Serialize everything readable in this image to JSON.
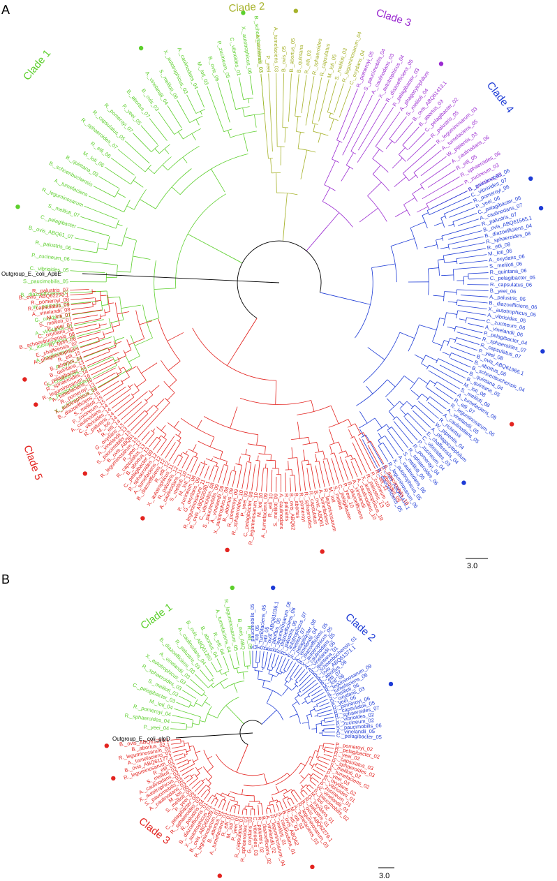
{
  "colors": {
    "green": "#5ccf2c",
    "olive": "#a6b22a",
    "purple": "#9b2bd1",
    "blue": "#1d3bd6",
    "red": "#e3231f",
    "black": "#000000"
  },
  "panels": [
    {
      "letter": "A",
      "outgroup_label": "Outgroup_E._coli_ApbE",
      "scale_label": "3.0",
      "clades": [
        {
          "label": "Clade 1",
          "color": "green",
          "start": 150,
          "end": 265,
          "leaves": [
            "X._autotrophicus_07",
            "A._phagocytophilum",
            "E._chaffeensis_03",
            "R._typhi_01",
            "A._caulinodans_07",
            "X._autotrophicus_06",
            "A._vinelandii_01",
            "G._oxydans_01",
            "W._pipientis_03",
            "B._diazoefficiens_07",
            "S._paucimobilis_05",
            "C._vibrioides_05",
            "P._zucineum_06",
            "R._palustris_06",
            "B._ovis_ABQ61_07",
            "C._pelagibacter",
            "S._meliloti_07",
            "R._leguminosarum",
            "A._tumefaciens",
            "B._schoenbuchensis",
            "B._quintana_03",
            "M._loti_06",
            "R._etli_06",
            "R._sphaeroides_07",
            "R._capsulatus_05",
            "R._pomeroyi_07",
            "P._yeei_05",
            "B._abortus_07",
            "B._ovis_03",
            "A._vinelandii_04",
            "S._meliloti_06",
            "X._autotrophicus_03",
            "A._caulinodans_04",
            "M._loti_03",
            "B._ovis_06",
            "P._zucineum_05",
            "C._vibrioides_01",
            "X._autotrophicus_06",
            "B._schoenbuchensis_03"
          ]
        },
        {
          "label": "Clade 2",
          "color": "olive",
          "start": 265,
          "end": 290,
          "leaves": [
            "A._vinelandii_03",
            "P._yeei",
            "A._tumefaciens_03",
            "B._ovis_05",
            "B._abortus_05",
            "B._quintana",
            "R._etli_03",
            "R._sphaeroides",
            "R._capsulatus",
            "M._loti_05",
            "S._meliloti_03",
            "R._leguminosarum_04",
            "C._oxydans_04"
          ]
        },
        {
          "label": "Clade 3",
          "color": "purple",
          "start": 292,
          "end": 334,
          "leaves": [
            "R._pomeroyi_05",
            "S._paucimobilis_04",
            "A._caulinodans_03",
            "X._autotrophicus_04",
            "R._diazoefficiens_05",
            "P._pelagibacter_03",
            "A._phagocytophilum",
            "S._meliloti_04",
            "B._ovis_ABQ61413.1",
            "B._abortus_03",
            "C._pelagibacter_02",
            "R._palustris_05",
            "R._leguminosarum_03",
            "A._tumefaciens_05",
            "W._pipientis_03",
            "A._caulinodans_06",
            "R._etli_05",
            "R._sphaeroides_06",
            "P._zucineum_03",
            "B._quintana_02"
          ]
        },
        {
          "label": "Clade 4",
          "color": "blue",
          "start": 334,
          "end": 422,
          "leaves": [
            "S._paucimobilis_06",
            "C._vibrioides_07",
            "R._pomeroyi_06",
            "P._yeei_06",
            "C._pelagibacter_06",
            "A._caulinodans_07",
            "R._palustris_07",
            "B._ovis_ABQ61565.1",
            "B._diazoefficiens_04",
            "R._sphaeroides_08",
            "R._etli_08",
            "M._loti_06",
            "A._oxydans_06",
            "S._meliloti_06",
            "R._quintana_06",
            "C._pelagibacter_05",
            "R._capsulatus_06",
            "B._yeei_06",
            "A._palustris_06",
            "B._diazoefficiens_06",
            "X._autotrophicus_05",
            "A._vibrioides_05",
            "C._zucineum_06",
            "A._vinelandii_06",
            "P._pelagibacter_04",
            "R._sphaeroides_07",
            "R._capsulatus_07",
            "P._yeei_08",
            "B._ovis_ABQ61966.1",
            "B._abortus_06",
            "B._schoenbuchensis_04",
            "B._quintana_04",
            "B._quintana_05",
            "M._loti_08",
            "S._meliloti_08",
            "A._tumefaciens_08",
            "R._etli_07",
            "R._leguminosarum_06",
            "A._vinelandii_05",
            "A._caulinodans_05",
            "R._rickettsii",
            "W._pipientis_04",
            "A._phagocytophilum",
            "E._chaffeensis_04",
            "C._vibrioides_03",
            "P._zucineum_04",
            "R._pomeroyi_04",
            "R._sphaeroides_06",
            "S._meliloti_05",
            "A._caulinodans_06",
            "X._autotrophicus_05",
            "R._leguminosarum_05",
            "B._ovis_ABQ61416.1",
            "B._diazoefficiens_05"
          ]
        },
        {
          "label": "Clade 5",
          "color": "red",
          "start": 60,
          "end": 178,
          "leaves": [
            "S._paucimobilis_10",
            "C._vibrioides_09",
            "R._etli_11",
            "P._zucineum_10",
            "R._palustris_13",
            "X._autotrophicus_10",
            "A._caulinodans_10",
            "A._vinelandii",
            "B._diazoefficiens",
            "P._yeei_10",
            "C._pelagibacter",
            "S._meliloti",
            "M._loti",
            "R._leguminosarum",
            "A._tumefaciens",
            "B._ovis_ABQ61",
            "R._capsulatus",
            "R._sphaeroides",
            "R._pomeroyi",
            "B._abortus",
            "B._ovis_ABQ62",
            "R._palustris",
            "A._caulinodans",
            "S._meliloti_09",
            "R._etli_10",
            "A._tumefaciens_09",
            "M._loti_10",
            "R._leguminosarum_10",
            "C._pelagibacter_08",
            "P._yeei_09",
            "R._sphaeroides_10",
            "R._pomeroyi_09",
            "B._abortus_09",
            "X._autotrophicus_08",
            "A._vinelandii_09",
            "S._paucimobilis_09",
            "C._vibrioides_08",
            "B._ovis_ABQ62090.1",
            "R._leguminosarum_11",
            "G._oxydans_09",
            "P._zucineum_08",
            "M._loti_11",
            "S._meliloti_10",
            "A._caulinodans_11",
            "R._palustris_12",
            "X._autotrophicus_11",
            "R._etli_12",
            "B._diazoefficiens_12",
            "A._tumefaciens_12",
            "R._sphaeroides_12",
            "C._pelagibacter_09",
            "B._abortus_13",
            "R._capsulatus_13",
            "P._yeei_12",
            "R._leguminosarum_13",
            "B._ovis_ABQ61",
            "S._paucimobilis_13",
            "A._vinelandii_13",
            "G._oxydans_13",
            "R._etli_14",
            "M._loti_14",
            "R._palustris_14",
            "C._vibrioides_14",
            "A._caulinodans_14",
            "P._zucineum_15",
            "S._meliloti_15",
            "B._diazoefficiens_15",
            "X._autotrophicus_16",
            "R._pomeroyi_13",
            "A._tumefaciens_16",
            "R._leguminosarum_16",
            "R._sphaeroides_14",
            "C._pelagibacter_12",
            "B._quintana_13",
            "B._abortus_14",
            "R._etli_15",
            "A._phagocytophilum",
            "E._chaffeensis_07",
            "R._typhi_08",
            "B._schoenbuchensis_08",
            "C._oxydans_08",
            "P._yeei_07",
            "S._meliloti_07",
            "M._loti_07",
            "A._vinelandii_08",
            "R._capsulatus_09",
            "R._pomeroyi_08",
            "B._ovis_ABQ62270.1",
            "R._palustris_07"
          ]
        }
      ],
      "dots": [
        {
          "color": "green",
          "angle": 262.4
        },
        {
          "color": "green",
          "angle": 239.5
        },
        {
          "color": "green",
          "angle": 196.2
        },
        {
          "color": "olive",
          "angle": 273.5
        },
        {
          "color": "purple",
          "angle": 306.5
        },
        {
          "color": "blue",
          "angle": 337.5
        },
        {
          "color": "blue",
          "angle": 344.1
        },
        {
          "color": "blue",
          "angle": 374.6
        },
        {
          "color": "blue",
          "angle": 407.3
        },
        {
          "color": "red",
          "angle": 31.3
        },
        {
          "color": "red",
          "angle": 80.9
        },
        {
          "color": "red",
          "angle": 101.0
        },
        {
          "color": "red",
          "angle": 120.1
        },
        {
          "color": "red",
          "angle": 135.5
        },
        {
          "color": "red",
          "angle": 153.4
        },
        {
          "color": "red",
          "angle": 159.2
        }
      ]
    },
    {
      "letter": "B",
      "outgroup_label": "Outgroup_E._coli_glpD",
      "scale_label": "3.0",
      "clades": [
        {
          "label": "Clade 1",
          "color": "green",
          "start": 183,
          "end": 268,
          "leaves": [
            "P._yeei_04",
            "R._sphaeroides_04",
            "R._pomeroyi_04",
            "M._loti_04",
            "C._pelagibacter_03",
            "S._meliloti_03",
            "R._sphaeroides_03",
            "X._autotrophicus_03",
            "A._vinelandii_03",
            "B._diazoefficiens_03",
            "R._palustris_03",
            "A._caulinodans_04",
            "B._ovis_ABQ61260",
            "B._abortus_04",
            "R._etli_04",
            "A._tumefaciens_04",
            "R._leguminosarum_05",
            "B._ovis_ABQ",
            "R._etli_05"
          ]
        },
        {
          "label": "Clade 2",
          "color": "blue",
          "start": 270,
          "end": 362,
          "leaves": [
            "S._paucimobilis_05",
            "M._loti_05",
            "A._tumefaciens_05",
            "R._etli_05",
            "B._ovis_ABQ61036.1",
            "B._abortus_05",
            "R._leguminosarum_08",
            "B._diazoefficiens_06",
            "R._palustris_06",
            "X._autotrophicus_07",
            "S._meliloti_07",
            "C._pelagibacter_08",
            "A._vinelandii_04",
            "B._diazoefficiens_05",
            "X._autotrophicus_05",
            "A._caulinodans_05",
            "A._vinelandii_06",
            "B._quintana_01",
            "B._schoenbuchensis_01",
            "B._ovis_ABQ61371.1",
            "B._abortus_06",
            "R._etli_07",
            "M._loti_06",
            "R._leguminosarum_09",
            "A._tumefaciens_06",
            "S._meliloti_06",
            "G._oxydans_03",
            "P._yeei_06",
            "R._pomeroyi_06",
            "R._capsulatus_05",
            "R._sphaeroides_07",
            "C._vibrioides_02",
            "P._zucineum_02",
            "S._paucimobilis_06",
            "A._vinelandii_05",
            "C._pelagibacter_05"
          ]
        },
        {
          "label": "Clade 3",
          "color": "red",
          "start": 8,
          "end": 175,
          "leaves": [
            "P._pomeroyi_02",
            "R._pelagibacter_02",
            "R._yeei_02",
            "C._capsulatus_03",
            "R._sphaeroides_03",
            "S._meliloti_02",
            "A._tumefaciens_02",
            "P._yeei_03",
            "B._oxydans_02",
            "C._vibrioides_01",
            "P._zucineum_01",
            "W._vinelandii_01",
            "S._paucimobilis_02",
            "M._loti_02",
            "G._oxydans_01",
            "R._palustris_01",
            "B._ovis_ABQ62279.1",
            "R._leguminosarum_03",
            "A._tumefaciens_03",
            "M._loti_03",
            "R._etli_03",
            "B._ovis_ABQ62",
            "A._caulinodans_01",
            "S._meliloti_01",
            "R._leguminosarum_04",
            "A._vinelandii_02",
            "B._diazoefficiens_02",
            "R._palustris_02",
            "C._vibrioides_03",
            "G._oxydans_03",
            "R._sphaeroides_01",
            "R._capsulatus_01",
            "P._yeei_01",
            "M._loti_01",
            "R._etli_01",
            "A._tumefaciens_01",
            "B._abortus_01",
            "R._leguminosarum_01",
            "B._ovis_ABQ60209.1",
            "X._autotrophicus_01",
            "B._diazoefficiens_01",
            "R._palustris_04",
            "R._sphaeroides_02",
            "C._pelagibacter_02",
            "P._yeei_05",
            "S._meliloti_04",
            "M._loti_05",
            "A._caulinodans_03",
            "S._paucimobilis_03",
            "X._autotrophicus_02",
            "A._caulinodans_02",
            "S._meliloti_02",
            "R._etli_02",
            "R._leguminosarum_02",
            "B._ovis_ABQ61177.1",
            "A._tumefaciens_02",
            "R._leguminosarum_03",
            "B._abortus_02.1",
            "B._ovis_ABQ61310.1"
          ]
        }
      ],
      "dots": [
        {
          "color": "green",
          "angle": 262.0
        },
        {
          "color": "blue",
          "angle": 278.0
        },
        {
          "color": "blue",
          "angle": 340.5
        },
        {
          "color": "red",
          "angle": 66.0
        },
        {
          "color": "red",
          "angle": 103.0
        },
        {
          "color": "red",
          "angle": 162.0
        },
        {
          "color": "red",
          "angle": 175.0
        }
      ]
    }
  ]
}
